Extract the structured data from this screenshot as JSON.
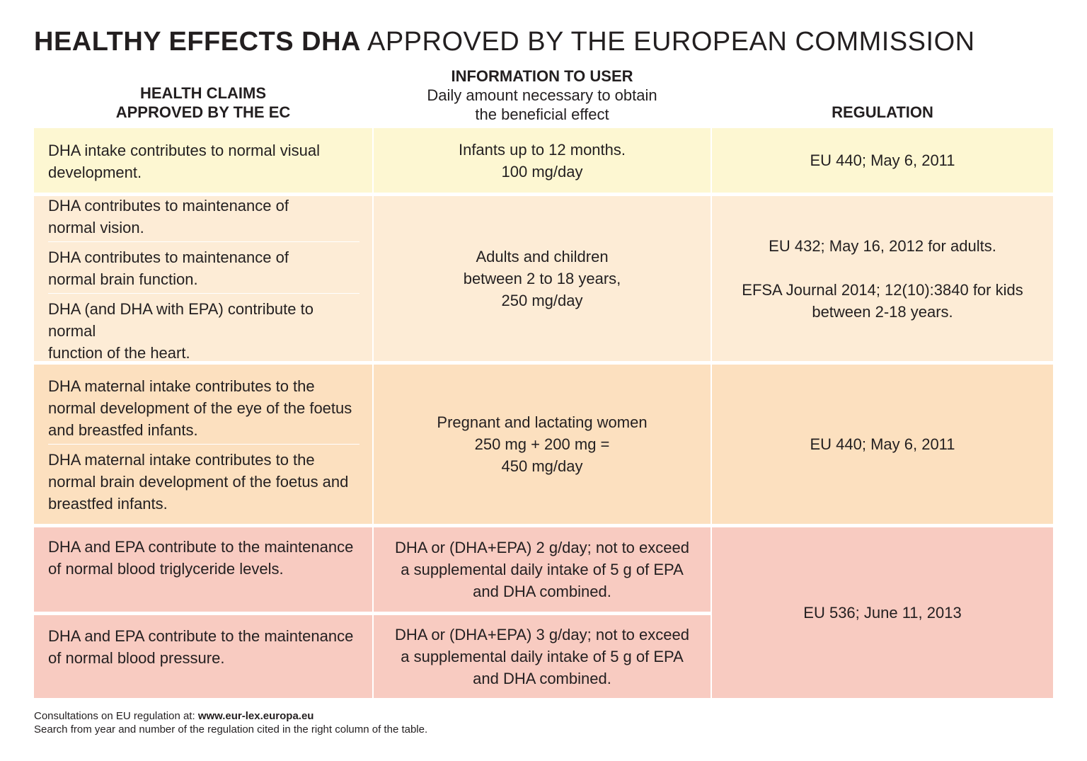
{
  "title": {
    "bold": "HEALTHY EFFECTS DHA",
    "light": "APPROVED BY THE EUROPEAN COMMISSION"
  },
  "headers": {
    "claims": [
      "HEALTH CLAIMS",
      "APPROVED BY THE EC"
    ],
    "info_title": "INFORMATION TO USER",
    "info_sub": [
      "Daily amount necessary to obtain",
      "the beneficial effect"
    ],
    "regulation": "REGULATION"
  },
  "rows": {
    "r1": {
      "claim1": [
        "DHA intake contributes to normal visual",
        "development."
      ],
      "info": [
        "Infants up to 12 months.",
        "100 mg/day"
      ],
      "regulation": [
        "EU 440; May 6, 2011"
      ]
    },
    "r2": {
      "claim1": [
        "DHA contributes to maintenance of",
        "normal vision."
      ],
      "claim2": [
        "DHA contributes to maintenance of",
        "normal brain function."
      ],
      "claim3": [
        "DHA (and DHA with EPA) contribute to normal",
        "function of the heart."
      ],
      "info": [
        "Adults and children",
        "between 2 to 18 years,",
        "250 mg/day"
      ],
      "regulation": [
        "EU 432; May 16, 2012 for adults.",
        "EFSA Journal 2014; 12(10):3840 for kids",
        "between 2-18 years."
      ]
    },
    "r3": {
      "claim1": [
        "DHA maternal intake contributes to the",
        "normal development of the eye of the foetus",
        "and breastfed infants."
      ],
      "claim2": [
        "DHA maternal intake contributes to the",
        "normal brain development of the foetus and",
        "breastfed infants."
      ],
      "info": [
        "Pregnant and lactating women",
        "250 mg + 200 mg =",
        "450 mg/day"
      ],
      "regulation": [
        "EU 440; May 6, 2011"
      ]
    },
    "r4": {
      "claim1": [
        "DHA and EPA contribute to the maintenance",
        "of normal blood triglyceride levels."
      ],
      "info": [
        "DHA or (DHA+EPA) 2 g/day; not to exceed",
        "a supplemental daily intake of 5 g of EPA",
        "and DHA combined."
      ]
    },
    "r5": {
      "claim1": [
        "DHA and EPA contribute to the maintenance",
        "of normal blood pressure."
      ],
      "info": [
        "DHA or (DHA+EPA) 3 g/day; not to exceed",
        "a supplemental daily intake of 5 g of EPA",
        "and DHA combined."
      ]
    },
    "r45_regulation": [
      "EU 536; June 11, 2013"
    ]
  },
  "footer": {
    "line1_prefix": "Consultations on EU regulation at: ",
    "line1_link": "www.eur-lex.europa.eu",
    "line2": "Search from year and number of the regulation cited in the right column of the table."
  },
  "colors": {
    "yellow": "#fdf7d2",
    "peach": "#fdecd6",
    "orange": "#fce0bf",
    "pink": "#f8cbc1"
  }
}
